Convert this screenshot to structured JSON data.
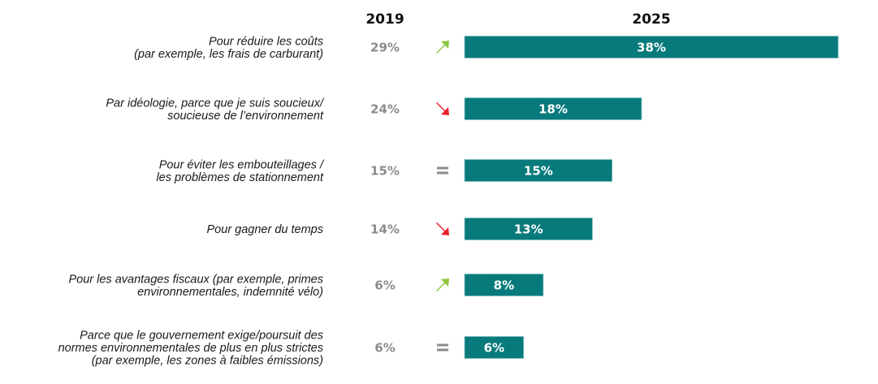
{
  "chart_data": {
    "type": "bar",
    "orientation": "horizontal",
    "title": "",
    "columns": {
      "left": "2019",
      "right": "2025"
    },
    "categories": [
      [
        "Pour réduire les coûts",
        "(par exemple, les frais de carburant)"
      ],
      [
        "Par idéologie, parce que je suis soucieux/",
        "soucieuse de l’environnement"
      ],
      [
        "Pour éviter les embouteillages /",
        "les problèmes de stationnement"
      ],
      [
        "Pour gagner du temps"
      ],
      [
        "Pour les avantages fiscaux (par exemple, primes",
        "environnementales, indemnité vélo)"
      ],
      [
        "Parce que le gouvernement exige/poursuit des",
        "normes environnementales de plus en plus strictes",
        "(par exemple, les zones à faibles émissions)"
      ]
    ],
    "series": [
      {
        "name": "2019",
        "values": [
          29,
          24,
          15,
          14,
          6,
          6
        ],
        "labels": [
          "29%",
          "24%",
          "15%",
          "14%",
          "6%",
          "6%"
        ],
        "display": "text"
      },
      {
        "name": "2025",
        "values": [
          38,
          18,
          15,
          13,
          8,
          6
        ],
        "labels": [
          "38%",
          "18%",
          "15%",
          "13%",
          "8%",
          "6%"
        ],
        "display": "bar"
      }
    ],
    "trend": [
      "up",
      "down",
      "equal",
      "down",
      "up",
      "equal"
    ],
    "xlim": [
      0,
      38
    ],
    "unit": "%",
    "grid": false,
    "legend": "none"
  },
  "colors": {
    "bar": "#087a7c",
    "bar_edge": "#7fbfc0",
    "up": "#8dc63f",
    "down": "#e8202a",
    "equal": "#8c8c8c",
    "value_2019": "#8c8c8c",
    "label": "#1a1a1a"
  }
}
